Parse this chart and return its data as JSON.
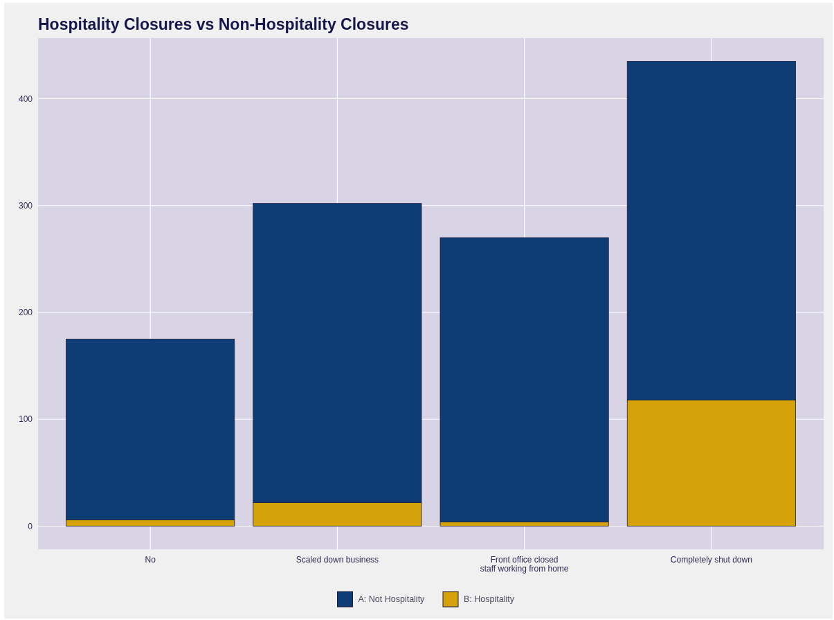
{
  "chart_data": {
    "type": "bar",
    "title": "Hospitality Closures vs Non-Hospitality Closures",
    "categories": [
      "No",
      "Scaled down business",
      "Front office closed\nstaff working from home",
      "Completely shut down"
    ],
    "series": [
      {
        "name": "B: Hospitality",
        "color": "#d6a20a",
        "values": [
          6,
          22,
          4,
          118
        ]
      },
      {
        "name": "A: Not Hospitality",
        "color": "#0e3d75",
        "values": [
          169,
          280,
          266,
          317
        ]
      }
    ],
    "stacked": true,
    "ylim": [
      -21.75,
      456.75
    ],
    "yticks": [
      0,
      100,
      200,
      300,
      400
    ],
    "grid": true,
    "legend": "bottom"
  }
}
